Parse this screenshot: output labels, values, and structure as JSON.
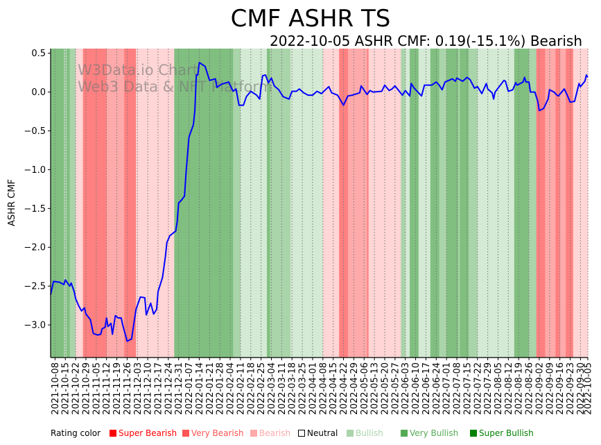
{
  "chart_data": {
    "type": "line",
    "title": "CMF ASHR TS",
    "subtitle": "2022-10-05 ASHR CMF: 0.19(-15.1%) Bearish",
    "xlabel": "",
    "ylabel": "ASHR CMF",
    "x_unit": "days since 2021-10-05",
    "xlim": [
      0,
      365
    ],
    "ylim": [
      -3.42,
      0.56
    ],
    "yticks": [
      0.5,
      0.0,
      -0.5,
      -1.0,
      -1.5,
      -2.0,
      -2.5,
      -3.0
    ],
    "ytick_labels": [
      "0.5",
      "0.0",
      "−0.5",
      "−1.0",
      "−1.5",
      "−2.0",
      "−2.5",
      "−3.0"
    ],
    "xticks": [
      3,
      10,
      17,
      24,
      31,
      38,
      45,
      52,
      59,
      66,
      73,
      80,
      87,
      94,
      101,
      108,
      115,
      122,
      129,
      136,
      143,
      150,
      157,
      164,
      171,
      178,
      185,
      192,
      199,
      206,
      213,
      220,
      227,
      234,
      241,
      248,
      255,
      262,
      269,
      276,
      283,
      290,
      297,
      304,
      311,
      318,
      325,
      332,
      339,
      346,
      353,
      360,
      365
    ],
    "xtick_labels": [
      "2021-10-08",
      "2021-10-15",
      "2021-10-22",
      "2021-10-29",
      "2021-11-05",
      "2021-11-12",
      "2021-11-19",
      "2021-11-26",
      "2021-12-03",
      "2021-12-10",
      "2021-12-17",
      "2021-12-24",
      "2021-12-31",
      "2022-01-07",
      "2022-01-14",
      "2022-01-21",
      "2022-01-28",
      "2022-02-04",
      "2022-02-11",
      "2022-02-18",
      "2022-02-25",
      "2022-03-04",
      "2022-03-11",
      "2022-03-18",
      "2022-03-25",
      "2022-04-01",
      "2022-04-08",
      "2022-04-15",
      "2022-04-22",
      "2022-04-29",
      "2022-05-06",
      "2022-05-13",
      "2022-05-20",
      "2022-05-27",
      "2022-06-03",
      "2022-06-10",
      "2022-06-17",
      "2022-06-24",
      "2022-07-01",
      "2022-07-08",
      "2022-07-15",
      "2022-07-22",
      "2022-07-29",
      "2022-08-05",
      "2022-08-12",
      "2022-08-19",
      "2022-08-26",
      "2022-09-02",
      "2022-09-09",
      "2022-09-16",
      "2022-09-23",
      "2022-09-30",
      "2022-10-05"
    ],
    "grid": "vertical dotted",
    "line_color": "#0000ff",
    "series": [
      {
        "name": "ASHR CMF",
        "points": [
          [
            0,
            -2.61
          ],
          [
            2,
            -2.44
          ],
          [
            6,
            -2.45
          ],
          [
            9,
            -2.48
          ],
          [
            10,
            -2.42
          ],
          [
            13,
            -2.5
          ],
          [
            14,
            -2.46
          ],
          [
            16,
            -2.57
          ],
          [
            17,
            -2.66
          ],
          [
            19,
            -2.75
          ],
          [
            21,
            -2.82
          ],
          [
            23,
            -2.78
          ],
          [
            24,
            -2.86
          ],
          [
            27,
            -2.93
          ],
          [
            29,
            -3.11
          ],
          [
            32,
            -3.13
          ],
          [
            34,
            -3.12
          ],
          [
            35,
            -3.05
          ],
          [
            37,
            -3.03
          ],
          [
            38,
            -2.91
          ],
          [
            39,
            -3.02
          ],
          [
            41,
            -2.98
          ],
          [
            42,
            -3.12
          ],
          [
            44,
            -2.88
          ],
          [
            46,
            -2.91
          ],
          [
            48,
            -2.91
          ],
          [
            49,
            -3.0
          ],
          [
            52,
            -3.21
          ],
          [
            55,
            -3.18
          ],
          [
            57,
            -2.93
          ],
          [
            58,
            -2.8
          ],
          [
            61,
            -2.64
          ],
          [
            64,
            -2.65
          ],
          [
            65,
            -2.87
          ],
          [
            68,
            -2.72
          ],
          [
            70,
            -2.86
          ],
          [
            72,
            -2.8
          ],
          [
            73,
            -2.57
          ],
          [
            76,
            -2.39
          ],
          [
            78,
            -2.12
          ],
          [
            79,
            -1.94
          ],
          [
            81,
            -1.85
          ],
          [
            85,
            -1.79
          ],
          [
            86,
            -1.67
          ],
          [
            87,
            -1.43
          ],
          [
            89,
            -1.39
          ],
          [
            91,
            -1.34
          ],
          [
            92,
            -1.05
          ],
          [
            94,
            -0.58
          ],
          [
            97,
            -0.42
          ],
          [
            98,
            -0.24
          ],
          [
            99,
            0.22
          ],
          [
            100,
            0.22
          ],
          [
            101,
            0.38
          ],
          [
            105,
            0.33
          ],
          [
            108,
            0.15
          ],
          [
            112,
            0.17
          ],
          [
            113,
            0.06
          ],
          [
            116,
            0.1
          ],
          [
            121,
            0.13
          ],
          [
            124,
            0.01
          ],
          [
            126,
            0.04
          ],
          [
            128,
            -0.17
          ],
          [
            131,
            -0.17
          ],
          [
            133,
            -0.06
          ],
          [
            136,
            0.01
          ],
          [
            140,
            -0.04
          ],
          [
            142,
            -0.09
          ],
          [
            144,
            0.21
          ],
          [
            146,
            0.22
          ],
          [
            148,
            0.12
          ],
          [
            150,
            0.18
          ],
          [
            152,
            0.08
          ],
          [
            155,
            0.03
          ],
          [
            158,
            -0.06
          ],
          [
            162,
            -0.09
          ],
          [
            164,
            0.01
          ],
          [
            167,
            0.01
          ],
          [
            169,
            0.04
          ],
          [
            172,
            -0.01
          ],
          [
            175,
            -0.04
          ],
          [
            178,
            -0.04
          ],
          [
            181,
            0.01
          ],
          [
            184,
            -0.02
          ],
          [
            189,
            0.07
          ],
          [
            191,
            -0.01
          ],
          [
            195,
            -0.04
          ],
          [
            199,
            -0.17
          ],
          [
            202,
            -0.05
          ],
          [
            205,
            -0.04
          ],
          [
            210,
            -0.01
          ],
          [
            211,
            0.08
          ],
          [
            215,
            -0.03
          ],
          [
            217,
            0.02
          ],
          [
            219,
            0.0
          ],
          [
            225,
            0.01
          ],
          [
            227,
            0.09
          ],
          [
            230,
            0.02
          ],
          [
            232,
            0.04
          ],
          [
            234,
            0.08
          ],
          [
            239,
            -0.04
          ],
          [
            241,
            0.02
          ],
          [
            244,
            -0.05
          ],
          [
            245,
            0.11
          ],
          [
            247,
            0.05
          ],
          [
            252,
            -0.05
          ],
          [
            254,
            0.09
          ],
          [
            259,
            0.09
          ],
          [
            262,
            0.13
          ],
          [
            264,
            0.09
          ],
          [
            266,
            0.03
          ],
          [
            268,
            0.13
          ],
          [
            273,
            0.17
          ],
          [
            275,
            0.14
          ],
          [
            276,
            0.18
          ],
          [
            280,
            0.14
          ],
          [
            283,
            0.19
          ],
          [
            285,
            0.16
          ],
          [
            288,
            0.05
          ],
          [
            290,
            0.07
          ],
          [
            293,
            -0.02
          ],
          [
            296,
            0.11
          ],
          [
            297,
            0.04
          ],
          [
            300,
            -0.01
          ],
          [
            301,
            -0.09
          ],
          [
            302,
            0.0
          ],
          [
            308,
            0.15
          ],
          [
            309,
            0.14
          ],
          [
            311,
            0.01
          ],
          [
            314,
            0.03
          ],
          [
            316,
            0.12
          ],
          [
            317,
            0.09
          ],
          [
            321,
            0.13
          ],
          [
            322,
            0.19
          ],
          [
            323,
            0.13
          ],
          [
            325,
            0.13
          ],
          [
            326,
            0.0
          ],
          [
            329,
            0.0
          ],
          [
            331,
            -0.12
          ],
          [
            332,
            -0.24
          ],
          [
            335,
            -0.21
          ],
          [
            338,
            -0.09
          ],
          [
            339,
            0.03
          ],
          [
            342,
            0.0
          ],
          [
            344,
            -0.04
          ],
          [
            345,
            -0.05
          ],
          [
            349,
            0.04
          ],
          [
            351,
            -0.04
          ],
          [
            353,
            -0.13
          ],
          [
            356,
            -0.12
          ],
          [
            359,
            0.11
          ],
          [
            360,
            0.07
          ],
          [
            363,
            0.14
          ],
          [
            364,
            0.22
          ],
          [
            365,
            0.19
          ]
        ]
      }
    ],
    "rating_bands": [
      [
        0,
        9,
        "super_bullish"
      ],
      [
        9,
        11,
        "very_bullish"
      ],
      [
        11,
        13,
        "super_bullish"
      ],
      [
        13,
        17,
        "very_bullish"
      ],
      [
        17,
        22,
        "bearish"
      ],
      [
        22,
        38,
        "super_bearish"
      ],
      [
        38,
        50,
        "very_bearish"
      ],
      [
        50,
        58,
        "super_bearish"
      ],
      [
        58,
        84,
        "bearish"
      ],
      [
        84,
        118,
        "super_bullish"
      ],
      [
        118,
        124,
        "super_bullish"
      ],
      [
        124,
        129,
        "very_bullish"
      ],
      [
        129,
        147,
        "bullish"
      ],
      [
        147,
        149,
        "super_bullish"
      ],
      [
        149,
        163,
        "very_bullish"
      ],
      [
        163,
        185,
        "bullish"
      ],
      [
        185,
        196,
        "bearish"
      ],
      [
        196,
        202,
        "super_bearish"
      ],
      [
        202,
        215,
        "very_bearish"
      ],
      [
        215,
        216,
        "super_bearish"
      ],
      [
        216,
        238,
        "bearish"
      ],
      [
        238,
        241,
        "very_bullish"
      ],
      [
        241,
        244,
        "bullish"
      ],
      [
        244,
        250,
        "super_bullish"
      ],
      [
        250,
        258,
        "bullish"
      ],
      [
        258,
        264,
        "super_bullish"
      ],
      [
        264,
        269,
        "very_bullish"
      ],
      [
        269,
        277,
        "super_bullish"
      ],
      [
        277,
        278,
        "very_bullish"
      ],
      [
        278,
        284,
        "super_bullish"
      ],
      [
        284,
        290,
        "very_bullish"
      ],
      [
        290,
        315,
        "bullish"
      ],
      [
        315,
        325,
        "super_bullish"
      ],
      [
        325,
        330,
        "very_bullish"
      ],
      [
        330,
        336,
        "super_bearish"
      ],
      [
        336,
        343,
        "very_bearish"
      ],
      [
        343,
        346,
        "super_bearish"
      ],
      [
        346,
        350,
        "very_bearish"
      ],
      [
        350,
        355,
        "super_bearish"
      ],
      [
        355,
        365,
        "bearish"
      ]
    ],
    "band_colors": {
      "super_bearish": "#ff8080",
      "very_bearish": "#ffaaaa",
      "bearish": "#ffd5d5",
      "neutral": "#ffffff",
      "bullish": "#d4ead4",
      "very_bullish": "#aad4aa",
      "super_bullish": "#80bf80"
    },
    "watermark": [
      "W3Data.io Chart",
      "Web3 Data & NFT Platform"
    ],
    "legend": {
      "title": "Rating color",
      "placement": "bottom",
      "items": [
        {
          "label": "Super Bearish",
          "color": "#ff0000"
        },
        {
          "label": "Very Bearish",
          "color": "#ff5555"
        },
        {
          "label": "Bearish",
          "color": "#ffaaaa"
        },
        {
          "label": "Neutral",
          "color": "#ffffff"
        },
        {
          "label": "Bullish",
          "color": "#aad4aa"
        },
        {
          "label": "Very Bullish",
          "color": "#55aa55"
        },
        {
          "label": "Super Bullish",
          "color": "#008000"
        }
      ]
    }
  }
}
